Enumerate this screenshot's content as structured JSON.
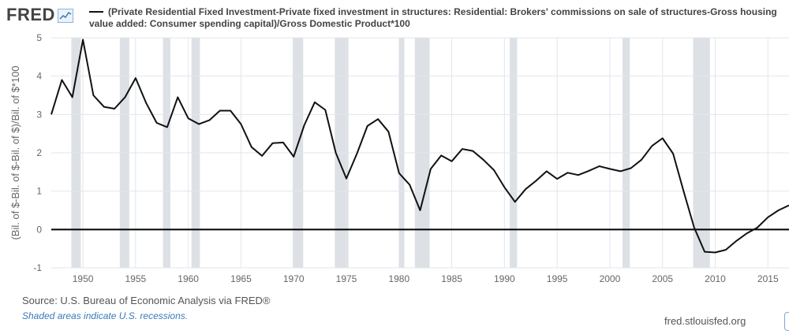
{
  "header": {
    "logo_text": "FRED",
    "logo_icon": "chart-line-icon",
    "title": "(Private Residential Fixed Investment-Private fixed investment in structures: Residential: Brokers' commissions on sale of structures-Gross housing value added: Consumer spending capital)/Gross Domestic Product*100"
  },
  "footer": {
    "source": "Source: U.S. Bureau of Economic Analysis via FRED®",
    "note": "Shaded areas indicate U.S. recessions.",
    "url": "fred.stlouisfed.org"
  },
  "colors": {
    "line": "#111111",
    "recession": "#dde1e6",
    "grid": "#e1e6ec",
    "axis_text": "#666666"
  },
  "chart_data": {
    "type": "line",
    "ylabel": "(Bil. of $-Bil. of $-Bil. of $)/Bil. of $*100",
    "xlim": [
      1947,
      2017
    ],
    "ylim": [
      -1,
      5
    ],
    "grid": true,
    "x_ticks": [
      1950,
      1955,
      1960,
      1965,
      1970,
      1975,
      1980,
      1985,
      1990,
      1995,
      2000,
      2005,
      2010,
      2015
    ],
    "y_ticks": [
      -1,
      0,
      1,
      2,
      3,
      4,
      5
    ],
    "zero_line": true,
    "recessions": [
      [
        1948.9,
        1949.8
      ],
      [
        1953.5,
        1954.4
      ],
      [
        1957.6,
        1958.3
      ],
      [
        1960.3,
        1961.1
      ],
      [
        1969.9,
        1970.9
      ],
      [
        1973.9,
        1975.2
      ],
      [
        1980.0,
        1980.5
      ],
      [
        1981.5,
        1982.9
      ],
      [
        1990.5,
        1991.2
      ],
      [
        2001.2,
        2001.9
      ],
      [
        2007.9,
        2009.5
      ]
    ],
    "series": [
      {
        "x": [
          1947,
          1948,
          1949,
          1950,
          1951,
          1952,
          1953,
          1954,
          1955,
          1956,
          1957,
          1958,
          1959,
          1960,
          1961,
          1962,
          1963,
          1964,
          1965,
          1966,
          1967,
          1968,
          1969,
          1970,
          1971,
          1972,
          1973,
          1974,
          1975,
          1976,
          1977,
          1978,
          1979,
          1980,
          1981,
          1982,
          1983,
          1984,
          1985,
          1986,
          1987,
          1988,
          1989,
          1990,
          1991,
          1992,
          1993,
          1994,
          1995,
          1996,
          1997,
          1998,
          1999,
          2000,
          2001,
          2002,
          2003,
          2004,
          2005,
          2006,
          2007,
          2008,
          2009,
          2010,
          2011,
          2012,
          2013,
          2014,
          2015,
          2016,
          2017
        ],
        "values": [
          3.0,
          3.9,
          3.45,
          4.95,
          3.5,
          3.2,
          3.15,
          3.45,
          3.95,
          3.3,
          2.78,
          2.67,
          3.45,
          2.9,
          2.75,
          2.85,
          3.1,
          3.1,
          2.75,
          2.15,
          1.92,
          2.25,
          2.27,
          1.9,
          2.72,
          3.32,
          3.12,
          2.0,
          1.33,
          1.98,
          2.7,
          2.88,
          2.55,
          1.47,
          1.17,
          0.5,
          1.58,
          1.93,
          1.78,
          2.1,
          2.05,
          1.82,
          1.55,
          1.1,
          0.72,
          1.05,
          1.27,
          1.52,
          1.32,
          1.48,
          1.42,
          1.53,
          1.65,
          1.58,
          1.52,
          1.6,
          1.82,
          2.18,
          2.38,
          1.98,
          1.0,
          0.05,
          -0.58,
          -0.6,
          -0.53,
          -0.3,
          -0.1,
          0.05,
          0.32,
          0.5,
          0.63
        ]
      }
    ]
  }
}
